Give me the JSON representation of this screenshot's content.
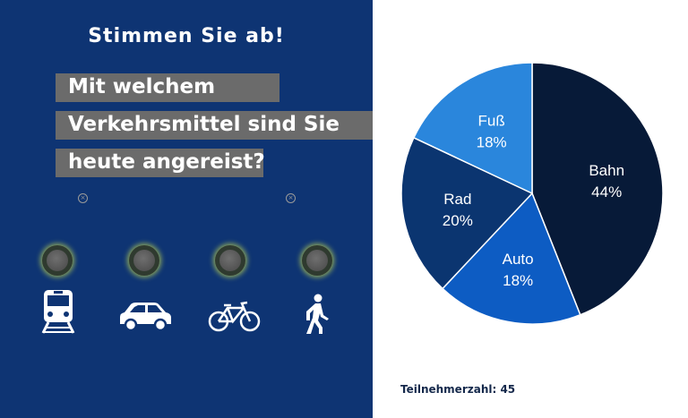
{
  "poll": {
    "title": "Stimmen Sie ab!",
    "question_lines": [
      "Mit welchem",
      "Verkehrsmittel sind Sie",
      "heute angereist?"
    ],
    "options": [
      "train-icon",
      "car-icon",
      "bicycle-icon",
      "pedestrian-icon"
    ]
  },
  "participants_label": "Teilnehmerzahl: 45",
  "chart_data": {
    "type": "pie",
    "title": "",
    "slices": [
      {
        "label": "Bahn",
        "value": 44,
        "value_label": "44%",
        "color": "#071a38"
      },
      {
        "label": "Auto",
        "value": 18,
        "value_label": "18%",
        "color": "#0d5cc3"
      },
      {
        "label": "Rad",
        "value": 20,
        "value_label": "20%",
        "color": "#0b3570"
      },
      {
        "label": "Fuß",
        "value": 18,
        "value_label": "18%",
        "color": "#2a86dc"
      }
    ],
    "start": "12 o'clock, clockwise"
  },
  "colors": {
    "panel_bg": "#0e3473",
    "question_bar": "#6b6b6b",
    "slice_border": "#ffffff"
  }
}
